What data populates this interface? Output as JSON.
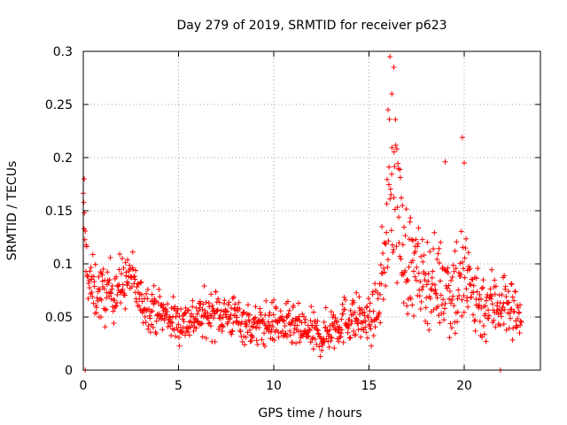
{
  "chart_data": {
    "type": "scatter",
    "title": "Day 279 of 2019, SRMTID for receiver p623",
    "xlabel": "GPS time / hours",
    "ylabel": "SRMTID / TECUs",
    "xlim": [
      0,
      24
    ],
    "ylim": [
      0,
      0.3
    ],
    "xticks": [
      0,
      5,
      10,
      15,
      20
    ],
    "xtick_labels": [
      "0",
      "5",
      "10",
      "15",
      "20"
    ],
    "yticks": [
      0,
      0.05,
      0.1,
      0.15,
      0.2,
      0.25,
      0.3
    ],
    "ytick_labels": [
      "0",
      "0.05",
      "0.1",
      "0.15",
      "0.2",
      "0.25",
      "0.3"
    ],
    "grid": true,
    "marker": "+",
    "marker_color": "#ff0000",
    "series": [
      {
        "name": "SRMTID",
        "profile_note": "approximate envelope of the scattered points (median level and spread) read from the plot",
        "x": [
          0,
          0.1,
          0.3,
          1,
          2,
          2.5,
          3,
          4,
          5,
          6,
          7,
          8,
          9,
          10,
          11,
          12,
          12.5,
          13,
          14,
          15,
          15.5,
          16,
          16.3,
          16.8,
          17.5,
          18,
          19,
          19.5,
          20,
          21,
          22,
          23
        ],
        "median": [
          0.15,
          0.12,
          0.08,
          0.07,
          0.08,
          0.09,
          0.065,
          0.055,
          0.045,
          0.05,
          0.055,
          0.05,
          0.04,
          0.045,
          0.04,
          0.035,
          0.03,
          0.04,
          0.05,
          0.045,
          0.06,
          0.14,
          0.19,
          0.11,
          0.09,
          0.085,
          0.08,
          0.08,
          0.085,
          0.06,
          0.065,
          0.05
        ],
        "spread": [
          0.03,
          0.02,
          0.025,
          0.025,
          0.025,
          0.02,
          0.02,
          0.018,
          0.018,
          0.018,
          0.02,
          0.018,
          0.018,
          0.018,
          0.018,
          0.018,
          0.015,
          0.02,
          0.02,
          0.02,
          0.02,
          0.06,
          0.09,
          0.05,
          0.04,
          0.035,
          0.04,
          0.05,
          0.05,
          0.03,
          0.03,
          0.02
        ]
      }
    ],
    "outliers": [
      {
        "x": 0.05,
        "y": 0.18
      },
      {
        "x": 0.1,
        "y": 0.0
      },
      {
        "x": 16.1,
        "y": 0.295
      },
      {
        "x": 16.3,
        "y": 0.285
      },
      {
        "x": 16.2,
        "y": 0.26
      },
      {
        "x": 16.0,
        "y": 0.245
      },
      {
        "x": 19.0,
        "y": 0.196
      },
      {
        "x": 19.9,
        "y": 0.219
      },
      {
        "x": 20.0,
        "y": 0.195
      },
      {
        "x": 21.9,
        "y": 0.0
      }
    ]
  }
}
